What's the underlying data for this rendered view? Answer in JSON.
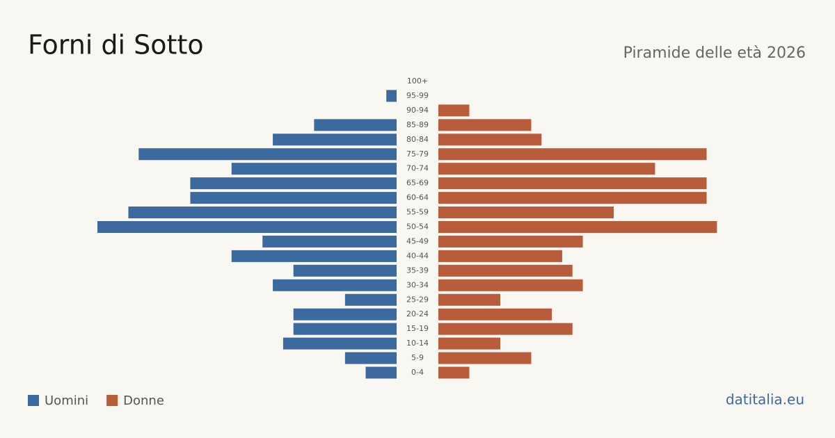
{
  "chart_data": {
    "type": "pyramid",
    "title": "Forni di Sotto",
    "subtitle": "Piramide delle età 2026",
    "source": "datitalia.eu",
    "categories": [
      "100+",
      "95-99",
      "90-94",
      "85-89",
      "80-84",
      "75-79",
      "70-74",
      "65-69",
      "60-64",
      "55-59",
      "50-54",
      "45-49",
      "40-44",
      "35-39",
      "30-34",
      "25-29",
      "20-24",
      "15-19",
      "10-14",
      "5-9",
      "0-4"
    ],
    "series": [
      {
        "name": "Uomini",
        "color": "#3d6a9e",
        "values": [
          0,
          1,
          0,
          8,
          12,
          25,
          16,
          20,
          20,
          26,
          29,
          13,
          16,
          10,
          12,
          5,
          10,
          10,
          11,
          5,
          3
        ]
      },
      {
        "name": "Donne",
        "color": "#b85c3c",
        "values": [
          0,
          0,
          3,
          9,
          10,
          26,
          21,
          26,
          26,
          17,
          27,
          14,
          12,
          13,
          14,
          6,
          11,
          13,
          6,
          9,
          3
        ]
      }
    ]
  }
}
